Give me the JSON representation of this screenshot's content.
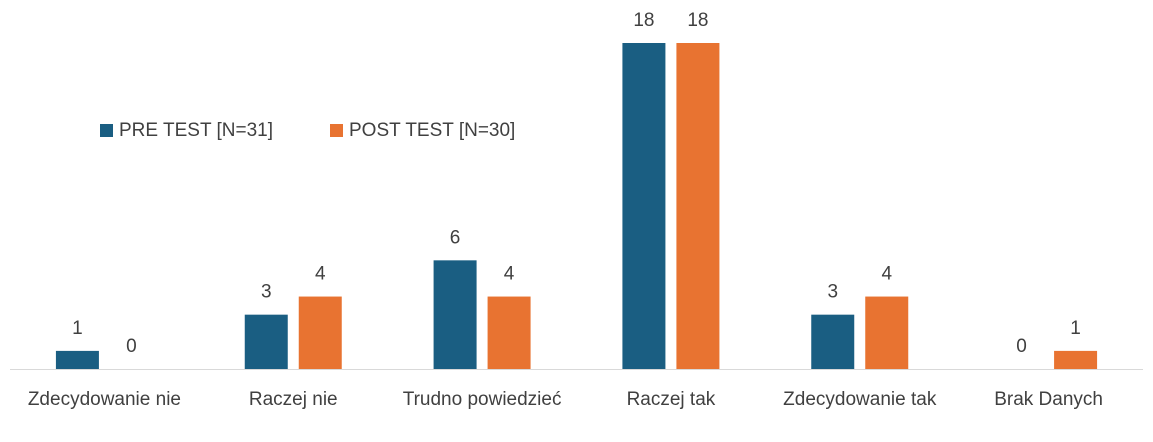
{
  "chart_data": {
    "type": "bar",
    "categories": [
      "Zdecydowanie nie",
      "Raczej nie",
      "Trudno powiedzieć",
      "Raczej tak",
      "Zdecydowanie tak",
      "Brak Danych"
    ],
    "series": [
      {
        "name": "PRE TEST [N=31]",
        "color": "#1a5e82",
        "values": [
          1,
          3,
          6,
          18,
          3,
          0
        ]
      },
      {
        "name": "POST TEST [N=30]",
        "color": "#e87331",
        "values": [
          0,
          4,
          4,
          18,
          4,
          1
        ]
      }
    ],
    "legend": "top-left"
  }
}
